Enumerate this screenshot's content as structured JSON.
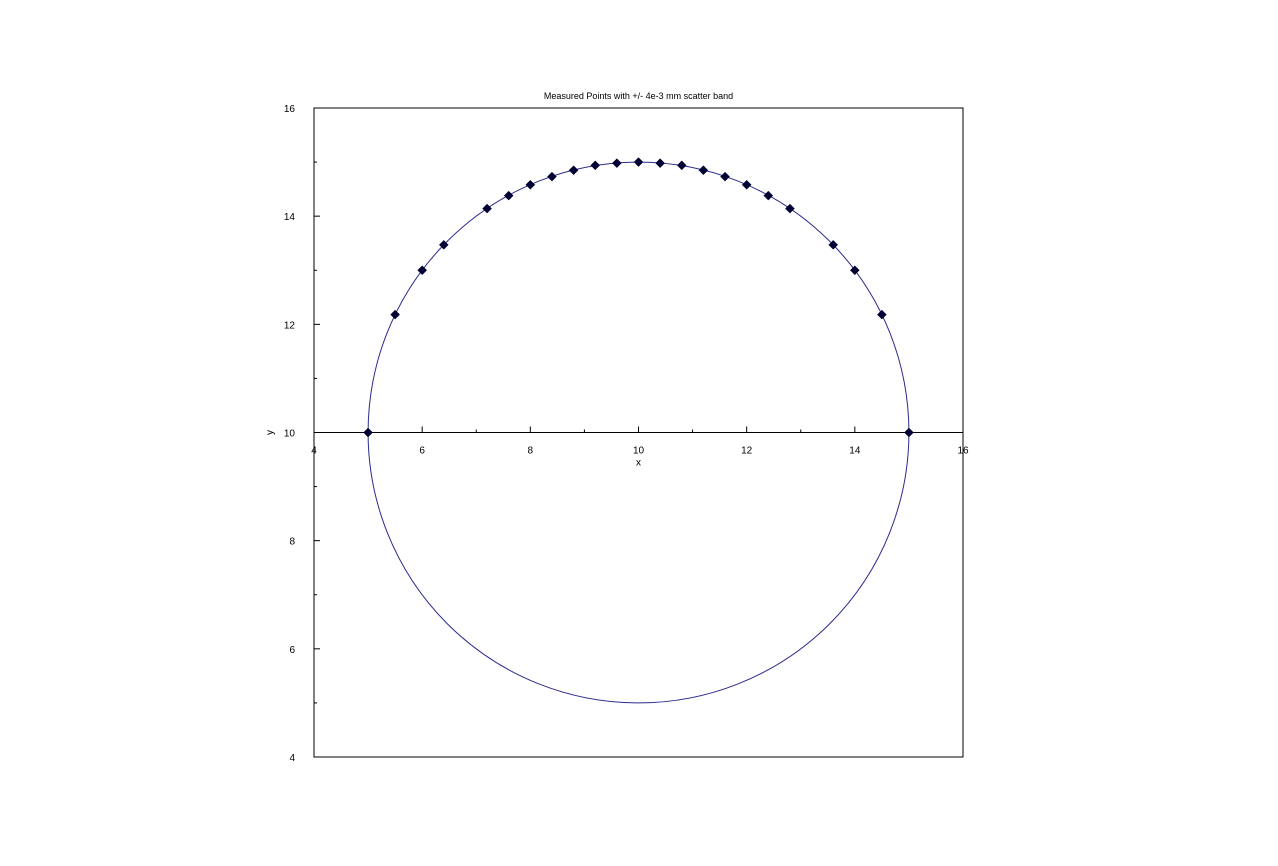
{
  "chart_data": {
    "type": "scatter",
    "title": "Measured Points with +/- 4e-3 mm scatter band",
    "xlabel": "x",
    "ylabel": "y",
    "xlim": [
      4,
      16
    ],
    "ylim": [
      4,
      16
    ],
    "axes_cross": [
      10,
      10
    ],
    "x_ticks": [
      4,
      6,
      8,
      10,
      12,
      14,
      16
    ],
    "x_tick_labels": [
      "4",
      "6",
      "8",
      "10",
      "12",
      "14",
      "16"
    ],
    "y_ticks": [
      4,
      6,
      8,
      10,
      12,
      14,
      16
    ],
    "y_tick_labels": [
      "4",
      "6",
      "8",
      "10",
      "12",
      "14",
      "16"
    ],
    "grid": false,
    "colors": {
      "circle": "#2b2b8c",
      "points": "#000033",
      "axes": "#000000"
    },
    "circle": {
      "center": [
        10,
        10
      ],
      "radius": 5
    },
    "series": [
      {
        "marker": "diamond",
        "points": [
          [
            5.0,
            10.0
          ],
          [
            5.5,
            12.18
          ],
          [
            6.0,
            13.0
          ],
          [
            6.4,
            13.47
          ],
          [
            7.2,
            14.14
          ],
          [
            7.6,
            14.38
          ],
          [
            8.0,
            14.58
          ],
          [
            8.4,
            14.73
          ],
          [
            8.8,
            14.85
          ],
          [
            9.2,
            14.94
          ],
          [
            9.6,
            14.98
          ],
          [
            10.0,
            15.0
          ],
          [
            10.4,
            14.98
          ],
          [
            10.8,
            14.94
          ],
          [
            11.2,
            14.85
          ],
          [
            11.6,
            14.73
          ],
          [
            12.0,
            14.58
          ],
          [
            12.4,
            14.38
          ],
          [
            12.8,
            14.14
          ],
          [
            13.6,
            13.47
          ],
          [
            14.0,
            13.0
          ],
          [
            14.5,
            12.18
          ],
          [
            15.0,
            10.0
          ]
        ]
      }
    ]
  }
}
